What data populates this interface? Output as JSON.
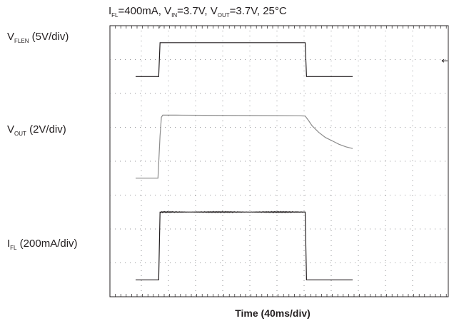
{
  "chart_data": {
    "type": "line",
    "title": {
      "i_sym": "I",
      "i_sub": "FL",
      "i_val": "=400mA, ",
      "vin_sym": "V",
      "vin_sub": "IN",
      "vin_val": "=3.7V, ",
      "vout_sym": "V",
      "vout_sub": "OUT",
      "vout_val": "=3.7V, 25°C"
    },
    "xlabel": "Time (40ms/div)",
    "time_per_div_ms": 40,
    "divisions": {
      "x": 10,
      "y": 8
    },
    "grid": true,
    "channels": [
      {
        "sym": "V",
        "sub": "FLEN",
        "scale": " (5V/div)",
        "units_per_div": 5,
        "ground_div": 6.5
      },
      {
        "sym": "V",
        "sub": "OUT",
        "scale": " (2V/div)",
        "units_per_div": 2,
        "ground_div": 3.5
      },
      {
        "sym": "I",
        "sub": "FL",
        "scale": " (200mA/div)",
        "units_per_div": 200,
        "ground_div": 0.5
      }
    ],
    "series": [
      {
        "key": "vflen",
        "channel": 0,
        "color": "#231f20",
        "x": [
          0,
          34,
          36,
          250,
          252,
          320
        ],
        "y": [
          0,
          0,
          5,
          5,
          0,
          0
        ]
      },
      {
        "key": "vout",
        "channel": 1,
        "color": "#8c8c8c",
        "x": [
          0,
          33,
          36,
          38,
          40,
          60,
          100,
          150,
          200,
          240,
          250,
          255,
          260,
          270,
          280,
          290,
          300,
          310,
          320
        ],
        "y": [
          0,
          0,
          2.5,
          3.6,
          3.72,
          3.72,
          3.71,
          3.7,
          3.69,
          3.68,
          3.67,
          3.4,
          3.1,
          2.7,
          2.4,
          2.2,
          2.0,
          1.85,
          1.75
        ]
      },
      {
        "key": "ifl",
        "channel": 2,
        "color": "#231f20",
        "x": [
          0,
          34,
          36,
          250,
          252,
          320
        ],
        "y": [
          0,
          0,
          400,
          400,
          0,
          0
        ],
        "noise_ma": 4
      }
    ],
    "trigger_marker": {
      "x": 0,
      "level": 0.02
    }
  }
}
